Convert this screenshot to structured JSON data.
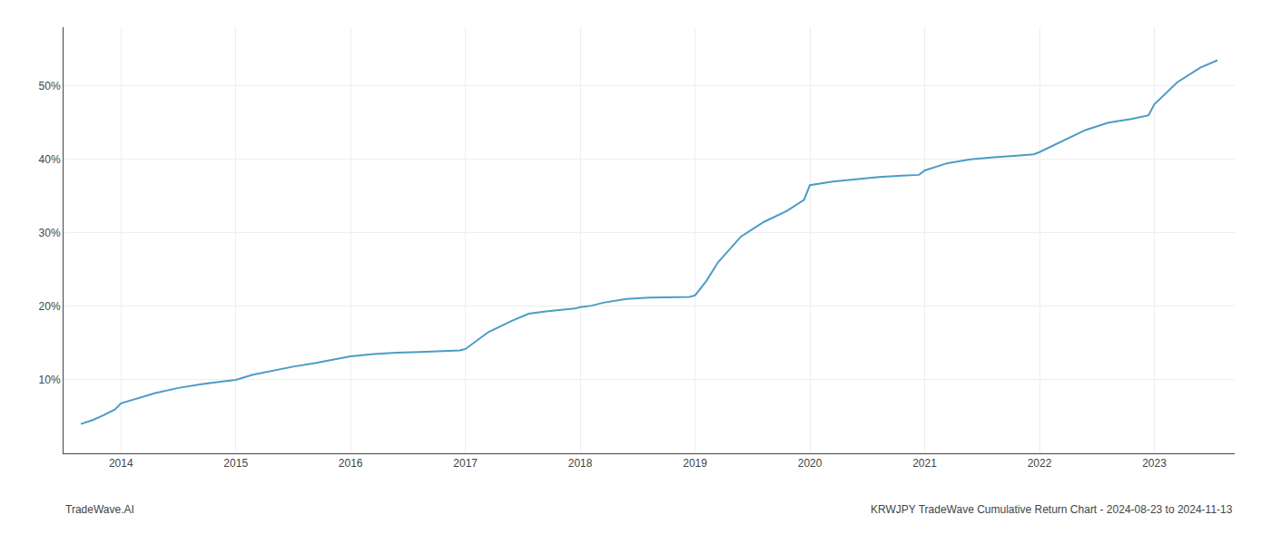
{
  "chart_data": {
    "type": "line",
    "title": "KRWJPY TradeWave Cumulative Return Chart - 2024-08-23 to 2024-11-13",
    "annotations": [
      "TradeWave.AI"
    ],
    "x": [
      2013.65,
      2013.75,
      2013.85,
      2013.95,
      2014.0,
      2014.15,
      2014.3,
      2014.5,
      2014.7,
      2014.9,
      2015.0,
      2015.15,
      2015.3,
      2015.5,
      2015.7,
      2015.9,
      2016.0,
      2016.2,
      2016.4,
      2016.6,
      2016.8,
      2016.95,
      2017.0,
      2017.2,
      2017.4,
      2017.55,
      2017.7,
      2017.85,
      2017.95,
      2018.0,
      2018.1,
      2018.2,
      2018.4,
      2018.6,
      2018.8,
      2018.95,
      2019.0,
      2019.1,
      2019.2,
      2019.4,
      2019.6,
      2019.8,
      2019.95,
      2020.0,
      2020.2,
      2020.4,
      2020.6,
      2020.8,
      2020.95,
      2021.0,
      2021.2,
      2021.4,
      2021.6,
      2021.8,
      2021.95,
      2022.0,
      2022.2,
      2022.4,
      2022.6,
      2022.8,
      2022.95,
      2023.0,
      2023.2,
      2023.4,
      2023.55
    ],
    "values": [
      4.0,
      4.5,
      5.2,
      6.0,
      6.8,
      7.5,
      8.2,
      8.9,
      9.4,
      9.8,
      10.0,
      10.7,
      11.2,
      11.8,
      12.3,
      12.9,
      13.2,
      13.5,
      13.7,
      13.8,
      13.9,
      14.0,
      14.2,
      16.5,
      18.0,
      19.0,
      19.3,
      19.5,
      19.7,
      19.9,
      20.1,
      20.5,
      21.0,
      21.2,
      21.3,
      21.3,
      21.5,
      23.5,
      26.0,
      29.5,
      31.5,
      33.0,
      34.5,
      36.5,
      37.0,
      37.3,
      37.6,
      37.8,
      37.9,
      38.5,
      39.5,
      40.0,
      40.3,
      40.5,
      40.7,
      41.0,
      42.5,
      44.0,
      45.0,
      45.5,
      46.0,
      47.5,
      50.5,
      52.5,
      53.5
    ],
    "color": "#4a9cc7",
    "xlim": [
      2013.5,
      2023.7
    ],
    "xticks": [
      2014,
      2015,
      2016,
      2017,
      2018,
      2019,
      2020,
      2021,
      2022,
      2023
    ],
    "ylim": [
      0,
      58
    ],
    "yticks": [
      {
        "value": 10,
        "label": "10%"
      },
      {
        "value": 20,
        "label": "20%"
      },
      {
        "value": 30,
        "label": "30%"
      },
      {
        "value": 40,
        "label": "40%"
      },
      {
        "value": 50,
        "label": "50%"
      }
    ],
    "grid": true
  }
}
